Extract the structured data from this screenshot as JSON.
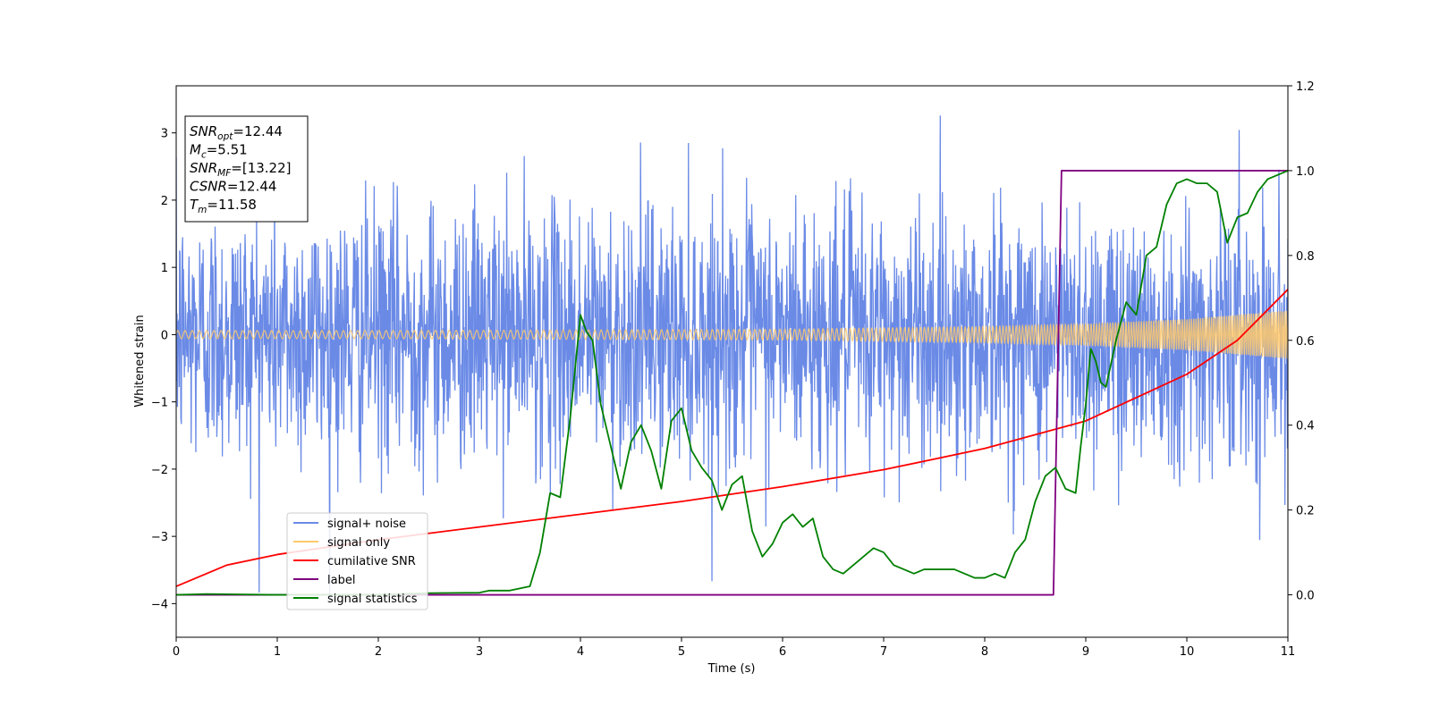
{
  "chart_data": {
    "type": "line",
    "title": "",
    "xlabel": "Time (s)",
    "ylabel": "Whitened strain",
    "xlim": [
      0,
      11
    ],
    "ylim": [
      -4.5,
      3.7
    ],
    "y2lim": [
      -0.1,
      1.2
    ],
    "xticks": [
      0,
      1,
      2,
      3,
      4,
      5,
      6,
      7,
      8,
      9,
      10,
      11
    ],
    "yticks": [
      -4,
      -3,
      -2,
      -1,
      0,
      1,
      2,
      3
    ],
    "y2ticks": [
      0.0,
      0.2,
      0.4,
      0.6,
      0.8,
      1.0,
      1.2
    ],
    "xtick_labels": [
      "0",
      "1",
      "2",
      "3",
      "4",
      "5",
      "6",
      "7",
      "8",
      "9",
      "10",
      "11"
    ],
    "ytick_labels": [
      "−4",
      "−3",
      "−2",
      "−1",
      "0",
      "1",
      "2",
      "3"
    ],
    "y2tick_labels": [
      "0.0",
      "0.2",
      "0.4",
      "0.6",
      "0.8",
      "1.0",
      "1.2"
    ],
    "legend_position": "lower-left",
    "grid": false,
    "info_box": {
      "position": "top-left",
      "lines": [
        {
          "sym": "SNR",
          "sub": "opt",
          "text": "=12.44"
        },
        {
          "sym": "M",
          "sub": "c",
          "text": "=5.51"
        },
        {
          "sym": "SNR",
          "sub": "MF",
          "text": "=[13.22]"
        },
        {
          "sym": "CSNR",
          "sub": "",
          "text": "=12.44"
        },
        {
          "sym": "T",
          "sub": "m",
          "text": "=11.58"
        }
      ]
    },
    "series": [
      {
        "name": "signal+ noise",
        "color": "#6a8ae6",
        "axis": "left",
        "style": "noise",
        "t_start": 0,
        "t_end": 11,
        "amplitude_std": 0.95,
        "peak_extent": [
          -4.15,
          3.35
        ]
      },
      {
        "name": "signal only",
        "color": "#ffc96b",
        "axis": "left",
        "style": "chirp",
        "envelope_t": [
          0,
          2,
          4,
          6,
          8,
          9,
          10,
          11
        ],
        "envelope_amp": [
          0.06,
          0.06,
          0.07,
          0.08,
          0.12,
          0.16,
          0.23,
          0.36
        ]
      },
      {
        "name": "cumilative SNR",
        "color": "#ff0000",
        "axis": "right",
        "x": [
          0,
          0.5,
          1,
          2,
          3,
          4,
          5,
          6,
          7,
          8,
          9,
          10,
          10.5,
          11
        ],
        "y": [
          0.02,
          0.07,
          0.095,
          0.13,
          0.16,
          0.19,
          0.22,
          0.255,
          0.295,
          0.345,
          0.41,
          0.52,
          0.6,
          0.72
        ]
      },
      {
        "name": "label",
        "color": "#800080",
        "axis": "right",
        "x": [
          0,
          8.68,
          8.76,
          11
        ],
        "y": [
          0.0,
          0.0,
          1.0,
          1.0
        ]
      },
      {
        "name": "signal statistics",
        "color": "#008000",
        "axis": "right",
        "x": [
          0,
          0.3,
          1,
          2,
          2.5,
          3,
          3.1,
          3.3,
          3.5,
          3.6,
          3.7,
          3.8,
          3.9,
          4.0,
          4.06,
          4.12,
          4.2,
          4.3,
          4.4,
          4.5,
          4.6,
          4.7,
          4.8,
          4.9,
          5.0,
          5.1,
          5.2,
          5.3,
          5.4,
          5.5,
          5.55,
          5.6,
          5.7,
          5.8,
          5.9,
          6.0,
          6.1,
          6.2,
          6.3,
          6.4,
          6.5,
          6.6,
          6.7,
          6.8,
          6.9,
          7.0,
          7.1,
          7.2,
          7.3,
          7.4,
          7.5,
          7.6,
          7.7,
          7.8,
          7.9,
          8.0,
          8.1,
          8.2,
          8.3,
          8.4,
          8.5,
          8.6,
          8.7,
          8.8,
          8.9,
          8.95,
          9.0,
          9.05,
          9.1,
          9.15,
          9.2,
          9.3,
          9.4,
          9.5,
          9.6,
          9.7,
          9.8,
          9.9,
          10.0,
          10.1,
          10.2,
          10.3,
          10.4,
          10.5,
          10.6,
          10.7,
          10.8,
          10.9,
          11.0
        ],
        "y": [
          0.0,
          0.002,
          0.0,
          0.0,
          0.004,
          0.005,
          0.01,
          0.01,
          0.02,
          0.1,
          0.24,
          0.23,
          0.42,
          0.66,
          0.62,
          0.6,
          0.45,
          0.35,
          0.25,
          0.36,
          0.4,
          0.34,
          0.25,
          0.41,
          0.44,
          0.34,
          0.3,
          0.27,
          0.2,
          0.26,
          0.27,
          0.28,
          0.15,
          0.09,
          0.12,
          0.17,
          0.19,
          0.16,
          0.18,
          0.09,
          0.06,
          0.05,
          0.07,
          0.09,
          0.11,
          0.1,
          0.07,
          0.06,
          0.05,
          0.06,
          0.06,
          0.06,
          0.06,
          0.05,
          0.04,
          0.04,
          0.05,
          0.04,
          0.1,
          0.13,
          0.22,
          0.28,
          0.3,
          0.25,
          0.24,
          0.35,
          0.45,
          0.58,
          0.55,
          0.5,
          0.49,
          0.6,
          0.69,
          0.66,
          0.8,
          0.82,
          0.92,
          0.97,
          0.98,
          0.97,
          0.97,
          0.95,
          0.83,
          0.89,
          0.9,
          0.95,
          0.98,
          0.99,
          1.0
        ]
      }
    ]
  }
}
